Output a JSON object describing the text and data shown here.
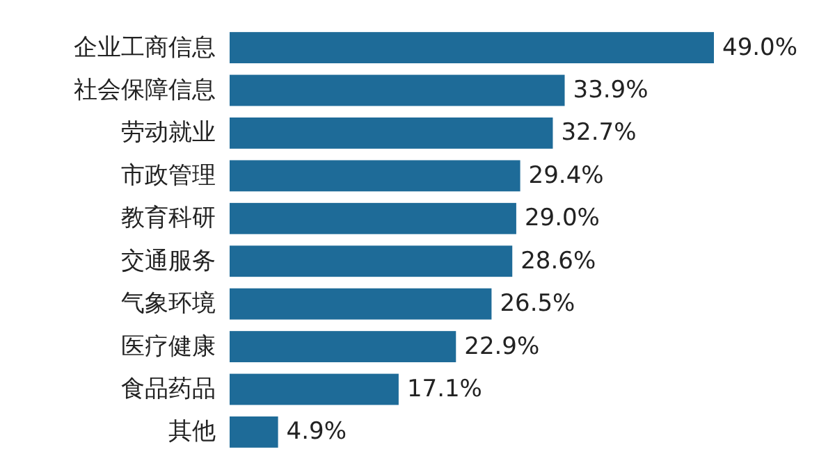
{
  "chart_data": {
    "type": "bar",
    "orientation": "horizontal",
    "categories": [
      "企业工商信息",
      "社会保障信息",
      "劳动就业",
      "市政管理",
      "教育科研",
      "交通服务",
      "气象环境",
      "医疗健康",
      "食品药品",
      "其他"
    ],
    "values": [
      49.0,
      33.9,
      32.7,
      29.4,
      29.0,
      28.6,
      26.5,
      22.9,
      17.1,
      4.9
    ],
    "value_labels": [
      "49.0%",
      "33.9%",
      "32.7%",
      "29.4%",
      "29.0%",
      "28.6%",
      "26.5%",
      "22.9%",
      "17.1%",
      "4.9%"
    ],
    "color": "#1e6b98"
  }
}
